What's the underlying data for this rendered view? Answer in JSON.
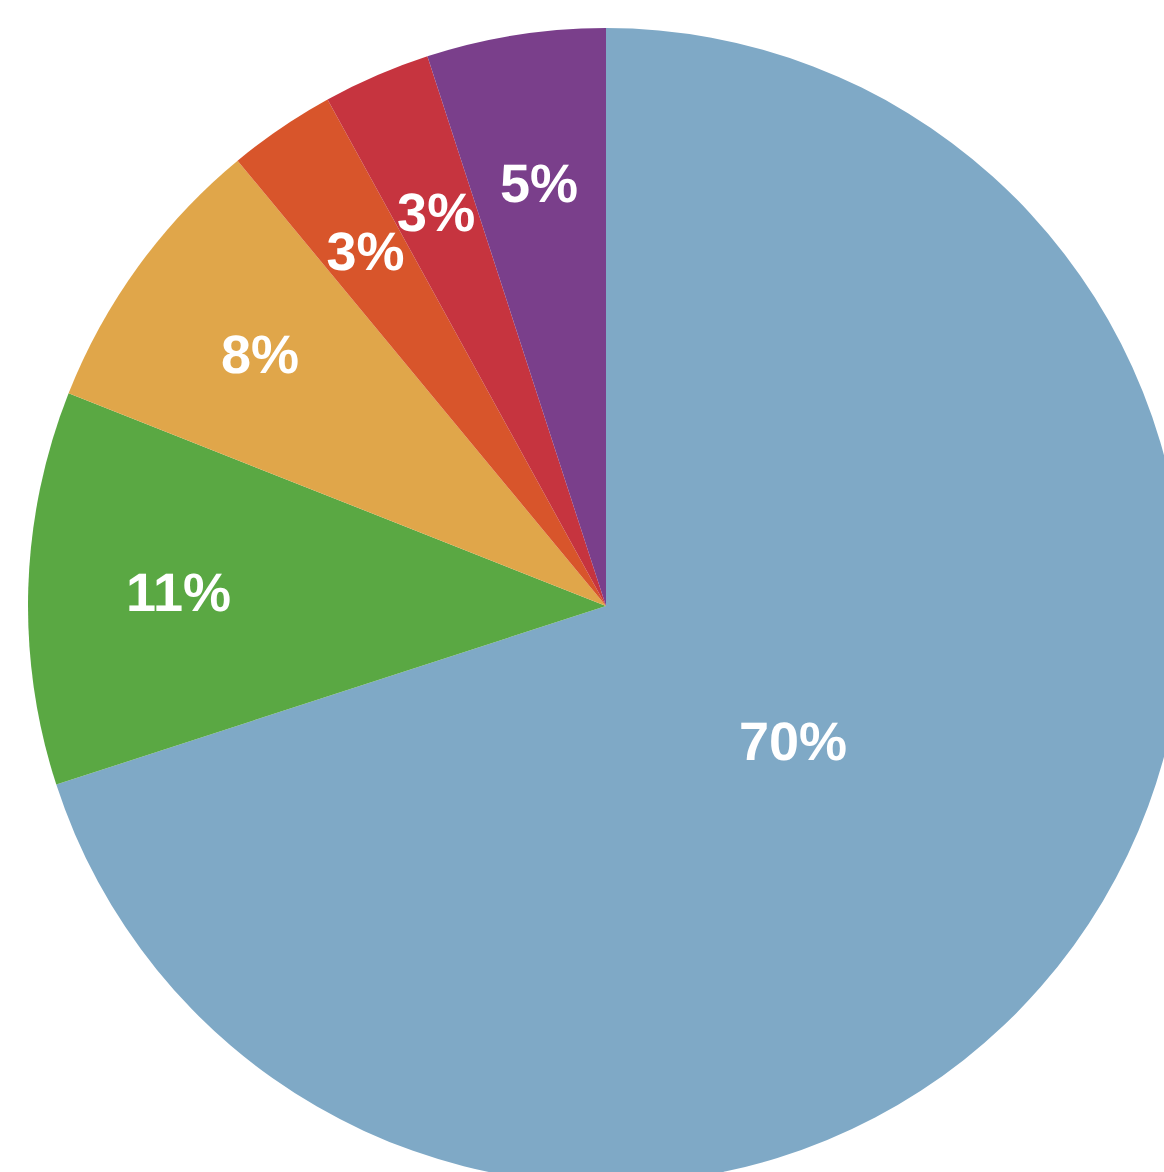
{
  "chart_data": {
    "type": "pie",
    "categories": [
      null,
      null,
      null,
      null,
      null,
      null
    ],
    "values": [
      70,
      11,
      8,
      3,
      3,
      5
    ],
    "colors": [
      "#7fa9c6",
      "#5aa843",
      "#e0a64a",
      "#d8552b",
      "#c6343f",
      "#7a3f8b"
    ],
    "value_labels": [
      "70%",
      "11%",
      "8%",
      "3%",
      "3%",
      "5%"
    ],
    "legend": false
  }
}
